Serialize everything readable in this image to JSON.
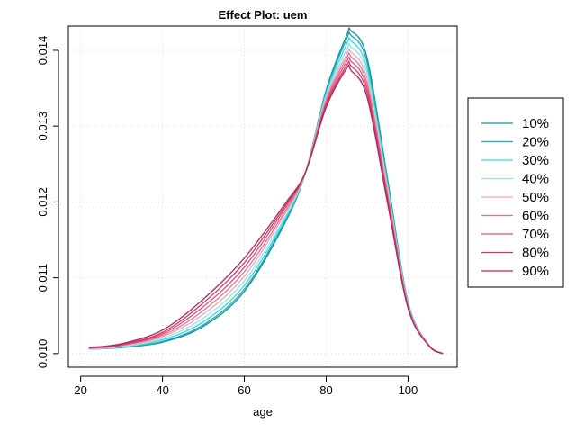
{
  "chart_data": {
    "type": "line",
    "title": "Effect Plot: uem",
    "xlabel": "age",
    "ylabel": "",
    "xlim": [
      17,
      112
    ],
    "ylim": [
      0.00982,
      0.01432
    ],
    "xticks": [
      20,
      40,
      60,
      80,
      100
    ],
    "yticks": [
      0.01,
      0.011,
      0.012,
      0.013,
      0.014
    ],
    "ytick_labels": [
      "0.010",
      "0.011",
      "0.012",
      "0.013",
      "0.014"
    ],
    "grid": true,
    "legend_position": "right",
    "x": [
      22,
      30,
      40,
      50,
      60,
      70,
      75,
      80,
      85,
      86,
      90,
      95,
      100,
      105,
      108.5
    ],
    "series": [
      {
        "name": "10%",
        "color": "#1a8f9a",
        "values": [
          0.01006,
          0.01008,
          0.01015,
          0.01036,
          0.01082,
          0.01173,
          0.0124,
          0.01348,
          0.0142,
          0.01426,
          0.0139,
          0.0123,
          0.01068,
          0.01012,
          0.01
        ]
      },
      {
        "name": "20%",
        "color": "#18aab8",
        "values": [
          0.01006,
          0.01008,
          0.01016,
          0.01038,
          0.01085,
          0.01175,
          0.0124,
          0.01346,
          0.01415,
          0.0142,
          0.01384,
          0.01226,
          0.01067,
          0.01012,
          0.01
        ]
      },
      {
        "name": "30%",
        "color": "#3fd6dc",
        "values": [
          0.01006,
          0.01009,
          0.01018,
          0.01042,
          0.0109,
          0.01178,
          0.0124,
          0.01343,
          0.01408,
          0.01413,
          0.01376,
          0.01222,
          0.01066,
          0.01012,
          0.01
        ]
      },
      {
        "name": "40%",
        "color": "#8ee8ea",
        "values": [
          0.01006,
          0.01009,
          0.0102,
          0.01047,
          0.01096,
          0.01181,
          0.0124,
          0.0134,
          0.01401,
          0.01405,
          0.01369,
          0.01218,
          0.01065,
          0.01012,
          0.01
        ]
      },
      {
        "name": "50%",
        "color": "#f4a3b8",
        "values": [
          0.01007,
          0.0101,
          0.01022,
          0.01052,
          0.01102,
          0.01185,
          0.0124,
          0.01337,
          0.01395,
          0.01398,
          0.01362,
          0.01214,
          0.01064,
          0.01012,
          0.01
        ]
      },
      {
        "name": "60%",
        "color": "#e8728e",
        "values": [
          0.01007,
          0.01011,
          0.01024,
          0.01057,
          0.01108,
          0.01188,
          0.0124,
          0.01334,
          0.0139,
          0.01392,
          0.01356,
          0.0121,
          0.01063,
          0.01011,
          0.01
        ]
      },
      {
        "name": "70%",
        "color": "#d9507a",
        "values": [
          0.01007,
          0.01011,
          0.01026,
          0.01062,
          0.01114,
          0.01192,
          0.0124,
          0.01331,
          0.01385,
          0.01386,
          0.0135,
          0.01206,
          0.01062,
          0.01011,
          0.01
        ]
      },
      {
        "name": "80%",
        "color": "#c93a68",
        "values": [
          0.01008,
          0.01012,
          0.01028,
          0.01067,
          0.0112,
          0.01195,
          0.0124,
          0.01328,
          0.0138,
          0.0138,
          0.01344,
          0.01202,
          0.01061,
          0.01011,
          0.01
        ]
      },
      {
        "name": "90%",
        "color": "#b8245a",
        "values": [
          0.01008,
          0.01013,
          0.01031,
          0.01072,
          0.01126,
          0.01198,
          0.0124,
          0.01325,
          0.01376,
          0.01374,
          0.01338,
          0.01198,
          0.0106,
          0.01011,
          0.01
        ]
      }
    ]
  }
}
